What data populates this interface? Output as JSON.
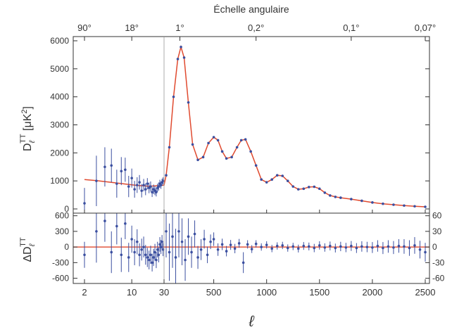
{
  "chart_data": {
    "type": "scatter",
    "top_axis": {
      "title": "Échelle angulaire",
      "ticks": [
        {
          "label": "90°",
          "ell": 2
        },
        {
          "label": "18°",
          "ell": 10
        },
        {
          "label": "1°",
          "ell": 180
        },
        {
          "label": "0,2°",
          "ell": 900
        },
        {
          "label": "0,1°",
          "ell": 1800
        },
        {
          "label": "0,07°",
          "ell": 2500
        }
      ]
    },
    "x_axis": {
      "label": "ℓ",
      "scale": "log for ℓ < 30, linear for ℓ ≥ 30",
      "ticks": [
        {
          "label": "2",
          "value": 2
        },
        {
          "label": "10",
          "value": 10
        },
        {
          "label": "30",
          "value": 30
        },
        {
          "label": "500",
          "value": 500
        },
        {
          "label": "1000",
          "value": 1000
        },
        {
          "label": "1500",
          "value": 1500
        },
        {
          "label": "2000",
          "value": 2000
        },
        {
          "label": "2500",
          "value": 2500
        }
      ],
      "range": [
        2,
        2550
      ]
    },
    "upper_panel": {
      "ylabel": "D",
      "ylabel_sub": "ℓ",
      "ylabel_sup": "TT",
      "ylabel_unit": " [μK",
      "ylabel_unit_sup": "2",
      "ylabel_close": "]",
      "ylim": [
        -150,
        6150
      ],
      "ticks": [
        {
          "label": "6000",
          "value": 6000
        },
        {
          "label": "5000",
          "value": 5000
        },
        {
          "label": "4000",
          "value": 4000
        },
        {
          "label": "3000",
          "value": 3000
        },
        {
          "label": "2000",
          "value": 2000
        },
        {
          "label": "1000",
          "value": 1000
        },
        {
          "label": "0",
          "value": 0
        }
      ]
    },
    "lower_panel": {
      "ylabel": "ΔD",
      "ylabel_sub": "ℓ",
      "ylabel_sup": "TT",
      "ylim": [
        -700,
        650
      ],
      "ticks_left": [
        {
          "label": "600",
          "value": 600
        },
        {
          "label": "300",
          "value": 300
        },
        {
          "label": "0",
          "value": 0
        },
        {
          "label": "-300",
          "value": -300
        },
        {
          "label": "-600",
          "value": -600
        }
      ],
      "ticks_right": [
        {
          "label": "60",
          "value": 600
        },
        {
          "label": "30",
          "value": 300
        },
        {
          "label": "0",
          "value": 0
        },
        {
          "label": "-30",
          "value": -300
        },
        {
          "label": "-60",
          "value": -600
        }
      ]
    },
    "model_curve": {
      "color": "#e04a2f",
      "ell": [
        2,
        3,
        5,
        8,
        12,
        18,
        25,
        30,
        50,
        80,
        120,
        160,
        190,
        220,
        260,
        300,
        350,
        400,
        450,
        500,
        540,
        580,
        620,
        670,
        720,
        760,
        800,
        850,
        900,
        950,
        1000,
        1050,
        1100,
        1150,
        1200,
        1250,
        1300,
        1350,
        1400,
        1450,
        1500,
        1550,
        1600,
        1650,
        1700,
        1800,
        1900,
        2000,
        2100,
        2200,
        2300,
        2400,
        2500
      ],
      "dl": [
        1050,
        1010,
        950,
        890,
        840,
        810,
        830,
        850,
        1200,
        2200,
        4000,
        5350,
        5780,
        5400,
        3800,
        2300,
        1750,
        1850,
        2350,
        2560,
        2450,
        2050,
        1800,
        1850,
        2200,
        2450,
        2480,
        2050,
        1550,
        1050,
        950,
        1050,
        1200,
        1180,
        1000,
        800,
        700,
        720,
        780,
        790,
        720,
        580,
        480,
        430,
        400,
        350,
        290,
        230,
        185,
        150,
        120,
        95,
        75
      ]
    },
    "data_points": {
      "color": "#3b4fa0",
      "lowell": [
        {
          "ell": 2,
          "dl": 200,
          "err": 550
        },
        {
          "ell": 3,
          "dl": 1000,
          "err": 900
        },
        {
          "ell": 4,
          "dl": 1500,
          "err": 700
        },
        {
          "ell": 5,
          "dl": 1550,
          "err": 600
        },
        {
          "ell": 6,
          "dl": 900,
          "err": 500
        },
        {
          "ell": 7,
          "dl": 1350,
          "err": 500
        },
        {
          "ell": 8,
          "dl": 1400,
          "err": 430
        },
        {
          "ell": 9,
          "dl": 800,
          "err": 380
        },
        {
          "ell": 10,
          "dl": 1100,
          "err": 340
        },
        {
          "ell": 11,
          "dl": 700,
          "err": 300
        },
        {
          "ell": 12,
          "dl": 850,
          "err": 280
        },
        {
          "ell": 13,
          "dl": 950,
          "err": 260
        },
        {
          "ell": 14,
          "dl": 650,
          "err": 240
        },
        {
          "ell": 15,
          "dl": 850,
          "err": 220
        },
        {
          "ell": 16,
          "dl": 700,
          "err": 210
        },
        {
          "ell": 17,
          "dl": 900,
          "err": 200
        },
        {
          "ell": 18,
          "dl": 750,
          "err": 190
        },
        {
          "ell": 19,
          "dl": 800,
          "err": 180
        },
        {
          "ell": 20,
          "dl": 600,
          "err": 175
        },
        {
          "ell": 21,
          "dl": 700,
          "err": 170
        },
        {
          "ell": 22,
          "dl": 650,
          "err": 160
        },
        {
          "ell": 23,
          "dl": 600,
          "err": 155
        },
        {
          "ell": 24,
          "dl": 750,
          "err": 150
        },
        {
          "ell": 25,
          "dl": 800,
          "err": 145
        },
        {
          "ell": 26,
          "dl": 900,
          "err": 140
        },
        {
          "ell": 27,
          "dl": 850,
          "err": 135
        },
        {
          "ell": 28,
          "dl": 950,
          "err": 130
        },
        {
          "ell": 29,
          "dl": 1000,
          "err": 125
        }
      ],
      "residuals": [
        {
          "ell": 2,
          "r": -150,
          "err": 250
        },
        {
          "ell": 3,
          "r": 300,
          "err": 600
        },
        {
          "ell": 4,
          "r": 500,
          "err": 400
        },
        {
          "ell": 5,
          "r": -100,
          "err": 400
        },
        {
          "ell": 6,
          "r": 400,
          "err": 350
        },
        {
          "ell": 7,
          "r": -150,
          "err": 330
        },
        {
          "ell": 8,
          "r": 450,
          "err": 300
        },
        {
          "ell": 9,
          "r": -200,
          "err": 280
        },
        {
          "ell": 10,
          "r": 150,
          "err": 260
        },
        {
          "ell": 11,
          "r": -100,
          "err": 250
        },
        {
          "ell": 12,
          "r": 100,
          "err": 240
        },
        {
          "ell": 13,
          "r": -150,
          "err": 220
        },
        {
          "ell": 14,
          "r": -50,
          "err": 210
        },
        {
          "ell": 15,
          "r": 0,
          "err": 200
        },
        {
          "ell": 16,
          "r": -150,
          "err": 190
        },
        {
          "ell": 17,
          "r": -200,
          "err": 185
        },
        {
          "ell": 18,
          "r": -250,
          "err": 180
        },
        {
          "ell": 19,
          "r": -150,
          "err": 175
        },
        {
          "ell": 20,
          "r": -300,
          "err": 170
        },
        {
          "ell": 21,
          "r": -200,
          "err": 165
        },
        {
          "ell": 22,
          "r": -100,
          "err": 160
        },
        {
          "ell": 23,
          "r": -250,
          "err": 155
        },
        {
          "ell": 24,
          "r": -50,
          "err": 150
        },
        {
          "ell": 25,
          "r": -150,
          "err": 145
        },
        {
          "ell": 26,
          "r": 50,
          "err": 140
        },
        {
          "ell": 27,
          "r": 0,
          "err": 135
        },
        {
          "ell": 28,
          "r": 100,
          "err": 130
        },
        {
          "ell": 29,
          "r": -50,
          "err": 125
        },
        {
          "ell": 50,
          "r": 300,
          "err": 500
        },
        {
          "ell": 80,
          "r": -100,
          "err": 550
        },
        {
          "ell": 110,
          "r": 200,
          "err": 600
        },
        {
          "ell": 140,
          "r": -200,
          "err": 550
        },
        {
          "ell": 170,
          "r": 300,
          "err": 500
        },
        {
          "ell": 200,
          "r": 100,
          "err": 450
        },
        {
          "ell": 230,
          "r": -250,
          "err": 400
        },
        {
          "ell": 260,
          "r": 200,
          "err": 350
        },
        {
          "ell": 290,
          "r": -100,
          "err": 300
        },
        {
          "ell": 320,
          "r": 250,
          "err": 260
        },
        {
          "ell": 350,
          "r": -200,
          "err": 220
        },
        {
          "ell": 380,
          "r": -50,
          "err": 200
        },
        {
          "ell": 410,
          "r": 150,
          "err": 180
        },
        {
          "ell": 440,
          "r": -150,
          "err": 160
        },
        {
          "ell": 470,
          "r": 100,
          "err": 140
        },
        {
          "ell": 500,
          "r": 150,
          "err": 130
        },
        {
          "ell": 540,
          "r": -50,
          "err": 120
        },
        {
          "ell": 580,
          "r": 50,
          "err": 110
        },
        {
          "ell": 620,
          "r": -80,
          "err": 100
        },
        {
          "ell": 660,
          "r": 40,
          "err": 95
        },
        {
          "ell": 700,
          "r": -30,
          "err": 90
        },
        {
          "ell": 740,
          "r": 70,
          "err": 85
        },
        {
          "ell": 780,
          "r": -300,
          "err": 200
        },
        {
          "ell": 820,
          "r": 50,
          "err": 80
        },
        {
          "ell": 860,
          "r": -40,
          "err": 75
        },
        {
          "ell": 900,
          "r": 60,
          "err": 70
        },
        {
          "ell": 950,
          "r": 0,
          "err": 70
        },
        {
          "ell": 1000,
          "r": 40,
          "err": 70
        },
        {
          "ell": 1050,
          "r": -30,
          "err": 70
        },
        {
          "ell": 1100,
          "r": 20,
          "err": 70
        },
        {
          "ell": 1150,
          "r": 30,
          "err": 70
        },
        {
          "ell": 1200,
          "r": -20,
          "err": 70
        },
        {
          "ell": 1250,
          "r": 10,
          "err": 70
        },
        {
          "ell": 1300,
          "r": -30,
          "err": 75
        },
        {
          "ell": 1350,
          "r": 20,
          "err": 75
        },
        {
          "ell": 1400,
          "r": 10,
          "err": 75
        },
        {
          "ell": 1450,
          "r": -20,
          "err": 80
        },
        {
          "ell": 1500,
          "r": 30,
          "err": 80
        },
        {
          "ell": 1550,
          "r": -10,
          "err": 80
        },
        {
          "ell": 1600,
          "r": 20,
          "err": 85
        },
        {
          "ell": 1650,
          "r": -20,
          "err": 85
        },
        {
          "ell": 1700,
          "r": 10,
          "err": 90
        },
        {
          "ell": 1750,
          "r": -10,
          "err": 90
        },
        {
          "ell": 1800,
          "r": 20,
          "err": 95
        },
        {
          "ell": 1850,
          "r": -20,
          "err": 95
        },
        {
          "ell": 1900,
          "r": 10,
          "err": 100
        },
        {
          "ell": 1950,
          "r": 0,
          "err": 100
        },
        {
          "ell": 2000,
          "r": -10,
          "err": 105
        },
        {
          "ell": 2050,
          "r": 20,
          "err": 110
        },
        {
          "ell": 2100,
          "r": -20,
          "err": 115
        },
        {
          "ell": 2150,
          "r": 10,
          "err": 120
        },
        {
          "ell": 2200,
          "r": -10,
          "err": 125
        },
        {
          "ell": 2250,
          "r": 20,
          "err": 130
        },
        {
          "ell": 2300,
          "r": 10,
          "err": 140
        },
        {
          "ell": 2350,
          "r": -20,
          "err": 150
        },
        {
          "ell": 2400,
          "r": 30,
          "err": 160
        },
        {
          "ell": 2450,
          "r": -50,
          "err": 170
        },
        {
          "ell": 2500,
          "r": -100,
          "err": 180
        }
      ]
    }
  }
}
